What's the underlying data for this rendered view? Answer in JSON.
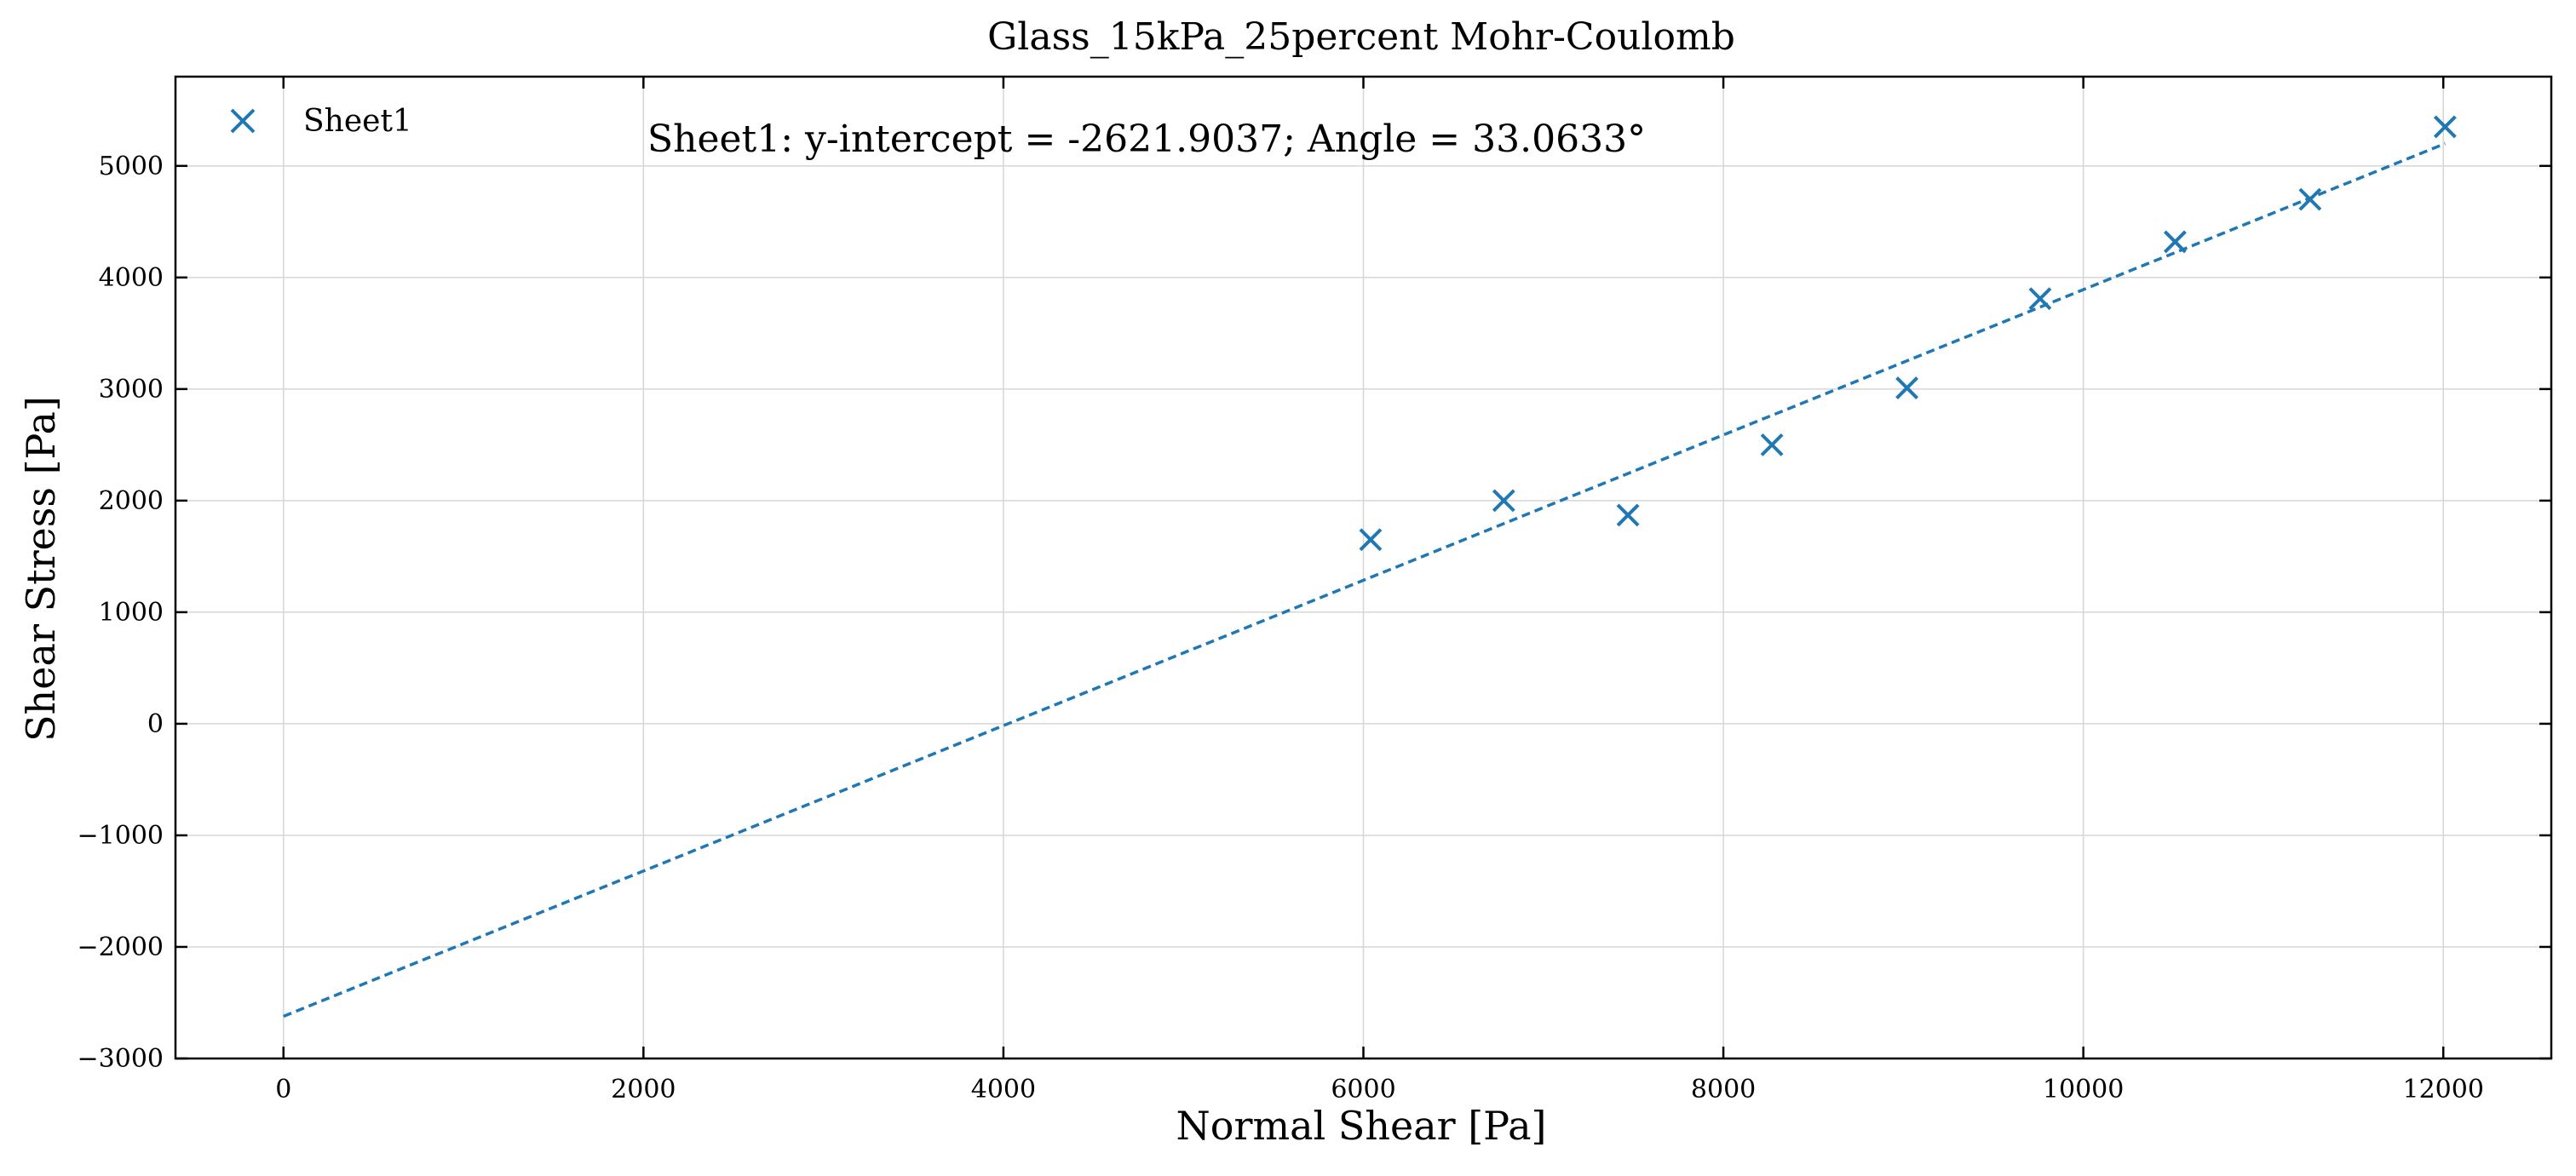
{
  "chart_data": {
    "type": "scatter",
    "title": "Glass_15kPa_25percent Mohr-Coulomb",
    "xlabel": "Normal Shear [Pa]",
    "ylabel": "Shear Stress [Pa]",
    "xlim": [
      -600,
      12600
    ],
    "ylim": [
      -3000,
      5800
    ],
    "x_ticks": [
      0,
      2000,
      4000,
      6000,
      8000,
      10000,
      12000
    ],
    "x_tick_labels": [
      "0",
      "2000",
      "4000",
      "6000",
      "8000",
      "10000",
      "12000"
    ],
    "y_ticks": [
      -3000,
      -2000,
      -1000,
      0,
      1000,
      2000,
      3000,
      4000,
      5000
    ],
    "y_tick_labels": [
      "−3000",
      "−2000",
      "−1000",
      "0",
      "1000",
      "2000",
      "3000",
      "4000",
      "5000"
    ],
    "grid": true,
    "legend_position": "top-left",
    "annotation": "Sheet1: y-intercept = -2621.9037; Angle = 33.0633°",
    "series": [
      {
        "name": "Sheet1",
        "marker": "x",
        "color": "#1f77b4",
        "x": [
          6040,
          6780,
          7470,
          8270,
          9020,
          9760,
          10510,
          11260,
          12010
        ],
        "y": [
          1650,
          2000,
          1870,
          2500,
          3010,
          3810,
          4320,
          4700,
          5350
        ]
      }
    ],
    "fit_line": {
      "style": "dashed",
      "color": "#1f77b4",
      "x": [
        0,
        12010
      ],
      "y": [
        -2621.9037,
        5200
      ]
    }
  }
}
